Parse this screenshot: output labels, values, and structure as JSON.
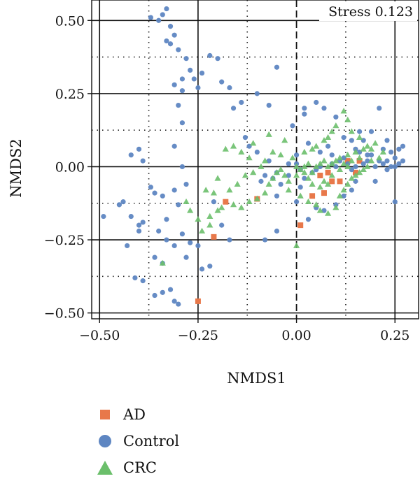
{
  "chart_data": {
    "type": "scatter",
    "title": "",
    "annotation": "Stress 0.123",
    "xlabel": "NMDS1",
    "ylabel": "NMDS2",
    "xlim": [
      -0.52,
      0.31
    ],
    "ylim": [
      -0.52,
      0.57
    ],
    "xticks": [
      -0.5,
      -0.25,
      0.0,
      0.25
    ],
    "xtick_labels": [
      "−0.50",
      "−0.25",
      "0.00",
      "0.25"
    ],
    "yticks": [
      0.5,
      0.25,
      0.0,
      -0.25,
      -0.5
    ],
    "ytick_labels": [
      "0.50",
      "0.25",
      "0.00",
      "−0.25",
      "−0.50"
    ],
    "minor_gridlines_x": [
      -0.375,
      -0.125,
      0.125
    ],
    "minor_gridlines_y": [
      0.375,
      0.125,
      -0.125,
      -0.375
    ],
    "reference_lines": [
      {
        "axis": "x",
        "value": 0.0,
        "style": "dashed"
      }
    ],
    "grid": true,
    "legend_position": "bottom-left",
    "series": [
      {
        "name": "AD",
        "color": "#E8784A",
        "marker": "square",
        "points": [
          [
            -0.25,
            -0.46
          ],
          [
            -0.21,
            -0.24
          ],
          [
            -0.18,
            -0.12
          ],
          [
            -0.1,
            -0.11
          ],
          [
            0.01,
            -0.2
          ],
          [
            0.04,
            -0.1
          ],
          [
            0.07,
            -0.09
          ],
          [
            0.09,
            -0.05
          ],
          [
            0.11,
            -0.05
          ],
          [
            0.15,
            -0.02
          ],
          [
            0.16,
            0.02
          ],
          [
            0.13,
            0.02
          ],
          [
            0.06,
            -0.03
          ],
          [
            0.08,
            -0.02
          ]
        ]
      },
      {
        "name": "Control",
        "color": "#5E86C2",
        "marker": "circle",
        "points": [
          [
            -0.33,
            0.54
          ],
          [
            -0.34,
            0.52
          ],
          [
            -0.37,
            0.51
          ],
          [
            -0.35,
            0.5
          ],
          [
            -0.32,
            0.48
          ],
          [
            -0.31,
            0.45
          ],
          [
            -0.33,
            0.43
          ],
          [
            -0.32,
            0.42
          ],
          [
            -0.3,
            0.4
          ],
          [
            -0.28,
            0.37
          ],
          [
            -0.27,
            0.33
          ],
          [
            -0.26,
            0.3
          ],
          [
            -0.29,
            0.3
          ],
          [
            -0.25,
            0.27
          ],
          [
            -0.24,
            0.32
          ],
          [
            -0.2,
            0.37
          ],
          [
            -0.22,
            0.38
          ],
          [
            -0.19,
            0.29
          ],
          [
            -0.17,
            0.27
          ],
          [
            -0.14,
            0.22
          ],
          [
            -0.16,
            0.2
          ],
          [
            -0.13,
            0.1
          ],
          [
            -0.1,
            0.25
          ],
          [
            -0.07,
            0.21
          ],
          [
            -0.05,
            0.34
          ],
          [
            -0.1,
            0.05
          ],
          [
            -0.12,
            0.07
          ],
          [
            -0.31,
            0.28
          ],
          [
            -0.29,
            0.26
          ],
          [
            -0.3,
            0.21
          ],
          [
            -0.29,
            0.15
          ],
          [
            -0.31,
            0.07
          ],
          [
            -0.29,
            0.0
          ],
          [
            -0.28,
            -0.06
          ],
          [
            -0.31,
            -0.08
          ],
          [
            -0.34,
            -0.1
          ],
          [
            -0.3,
            -0.13
          ],
          [
            -0.33,
            -0.18
          ],
          [
            -0.35,
            -0.22
          ],
          [
            -0.33,
            -0.25
          ],
          [
            -0.31,
            -0.27
          ],
          [
            -0.29,
            -0.23
          ],
          [
            -0.27,
            -0.26
          ],
          [
            -0.28,
            -0.31
          ],
          [
            -0.25,
            -0.27
          ],
          [
            -0.36,
            -0.31
          ],
          [
            -0.34,
            -0.33
          ],
          [
            -0.32,
            -0.42
          ],
          [
            -0.34,
            -0.43
          ],
          [
            -0.36,
            -0.44
          ],
          [
            -0.31,
            -0.46
          ],
          [
            -0.3,
            -0.47
          ],
          [
            -0.39,
            -0.39
          ],
          [
            -0.41,
            -0.38
          ],
          [
            -0.4,
            -0.22
          ],
          [
            -0.39,
            -0.19
          ],
          [
            -0.4,
            -0.2
          ],
          [
            -0.42,
            -0.17
          ],
          [
            -0.44,
            -0.12
          ],
          [
            -0.45,
            -0.13
          ],
          [
            -0.49,
            -0.17
          ],
          [
            -0.43,
            -0.27
          ],
          [
            -0.4,
            0.06
          ],
          [
            -0.42,
            0.04
          ],
          [
            -0.39,
            0.02
          ],
          [
            -0.37,
            -0.07
          ],
          [
            -0.36,
            -0.09
          ],
          [
            -0.21,
            -0.12
          ],
          [
            -0.19,
            -0.2
          ],
          [
            -0.17,
            -0.25
          ],
          [
            -0.24,
            -0.35
          ],
          [
            -0.22,
            -0.34
          ],
          [
            -0.08,
            -0.25
          ],
          [
            -0.05,
            -0.22
          ],
          [
            -0.04,
            -0.06
          ],
          [
            -0.06,
            -0.04
          ],
          [
            -0.05,
            -0.02
          ],
          [
            -0.02,
            0.01
          ],
          [
            0.0,
            0.01
          ],
          [
            -0.01,
            0.14
          ],
          [
            0.02,
            0.18
          ],
          [
            0.02,
            0.2
          ],
          [
            0.05,
            0.22
          ],
          [
            0.07,
            0.2
          ],
          [
            0.1,
            0.17
          ],
          [
            0.12,
            0.1
          ],
          [
            0.14,
            0.09
          ],
          [
            0.15,
            0.06
          ],
          [
            0.16,
            0.05
          ],
          [
            0.18,
            0.04
          ],
          [
            0.19,
            0.04
          ],
          [
            0.21,
            0.02
          ],
          [
            0.22,
            0.01
          ],
          [
            0.23,
            0.02
          ],
          [
            0.24,
            0.0
          ],
          [
            0.26,
            0.01
          ],
          [
            0.26,
            0.06
          ],
          [
            0.27,
            0.07
          ],
          [
            0.25,
            0.03
          ],
          [
            0.25,
            0.0
          ],
          [
            0.23,
            -0.01
          ],
          [
            0.2,
            0.0
          ],
          [
            0.18,
            0.02
          ],
          [
            0.17,
            0.01
          ],
          [
            0.15,
            0.0
          ],
          [
            0.13,
            0.01
          ],
          [
            0.12,
            0.03
          ],
          [
            0.11,
            0.02
          ],
          [
            0.1,
            0.0
          ],
          [
            0.09,
            0.01
          ],
          [
            0.06,
            0.0
          ],
          [
            0.05,
            -0.01
          ],
          [
            0.04,
            -0.02
          ],
          [
            0.02,
            -0.04
          ],
          [
            0.01,
            -0.07
          ],
          [
            0.0,
            -0.12
          ],
          [
            0.05,
            -0.14
          ],
          [
            0.03,
            -0.18
          ],
          [
            0.07,
            -0.15
          ],
          [
            0.1,
            -0.13
          ],
          [
            0.12,
            -0.1
          ],
          [
            0.14,
            -0.08
          ],
          [
            0.2,
            -0.05
          ],
          [
            0.21,
            0.2
          ],
          [
            0.19,
            0.12
          ],
          [
            0.23,
            0.09
          ],
          [
            0.22,
            0.06
          ],
          [
            0.24,
            0.05
          ],
          [
            0.16,
            0.12
          ],
          [
            0.17,
            0.09
          ],
          [
            0.08,
            0.07
          ],
          [
            0.09,
            0.04
          ],
          [
            0.14,
            -0.01
          ],
          [
            0.06,
            0.05
          ],
          [
            0.03,
            0.08
          ],
          [
            -0.02,
            -0.03
          ],
          [
            -0.08,
            -0.03
          ],
          [
            -0.09,
            -0.05
          ],
          [
            -0.05,
            -0.1
          ],
          [
            -0.07,
            0.02
          ],
          [
            0.01,
            -0.01
          ],
          [
            0.0,
            0.04
          ],
          [
            0.25,
            -0.12
          ],
          [
            0.15,
            -0.05
          ],
          [
            0.27,
            0.02
          ]
        ]
      },
      {
        "name": "CRC",
        "color": "#6BBF6B",
        "marker": "triangle",
        "points": [
          [
            -0.34,
            -0.33
          ],
          [
            -0.28,
            -0.12
          ],
          [
            -0.27,
            -0.15
          ],
          [
            -0.25,
            -0.18
          ],
          [
            -0.22,
            -0.17
          ],
          [
            -0.2,
            -0.15
          ],
          [
            -0.19,
            -0.14
          ],
          [
            -0.16,
            -0.13
          ],
          [
            -0.14,
            -0.14
          ],
          [
            -0.12,
            -0.12
          ],
          [
            -0.1,
            -0.11
          ],
          [
            -0.08,
            -0.09
          ],
          [
            -0.07,
            -0.06
          ],
          [
            -0.06,
            -0.04
          ],
          [
            -0.05,
            -0.02
          ],
          [
            -0.04,
            -0.01
          ],
          [
            -0.03,
            -0.03
          ],
          [
            -0.02,
            -0.05
          ],
          [
            0.0,
            -0.27
          ],
          [
            0.0,
            -0.03
          ],
          [
            0.01,
            -0.01
          ],
          [
            0.02,
            0.0
          ],
          [
            0.03,
            0.01
          ],
          [
            0.04,
            -0.02
          ],
          [
            0.05,
            0.0
          ],
          [
            0.06,
            0.01
          ],
          [
            0.07,
            0.02
          ],
          [
            0.08,
            0.0
          ],
          [
            0.09,
            0.01
          ],
          [
            0.1,
            0.02
          ],
          [
            0.11,
            0.03
          ],
          [
            0.12,
            0.01
          ],
          [
            0.13,
            0.04
          ],
          [
            0.14,
            0.02
          ],
          [
            0.15,
            0.05
          ],
          [
            0.16,
            0.03
          ],
          [
            0.17,
            0.06
          ],
          [
            0.18,
            0.07
          ],
          [
            0.19,
            0.06
          ],
          [
            0.2,
            0.08
          ],
          [
            0.12,
            0.19
          ],
          [
            0.13,
            0.16
          ],
          [
            0.1,
            0.14
          ],
          [
            0.09,
            0.12
          ],
          [
            0.08,
            0.1
          ],
          [
            0.07,
            0.09
          ],
          [
            0.05,
            0.07
          ],
          [
            0.04,
            0.06
          ],
          [
            0.02,
            0.05
          ],
          [
            -0.01,
            0.03
          ],
          [
            -0.03,
            0.09
          ],
          [
            -0.07,
            0.11
          ],
          [
            -0.11,
            0.08
          ],
          [
            -0.14,
            0.05
          ],
          [
            -0.16,
            0.07
          ],
          [
            -0.18,
            0.06
          ],
          [
            -0.13,
            -0.03
          ],
          [
            -0.15,
            -0.06
          ],
          [
            -0.17,
            -0.08
          ],
          [
            -0.2,
            -0.04
          ],
          [
            -0.21,
            -0.09
          ],
          [
            -0.23,
            -0.08
          ],
          [
            -0.11,
            -0.02
          ],
          [
            -0.09,
            0.0
          ],
          [
            -0.02,
            -0.08
          ],
          [
            0.01,
            -0.1
          ],
          [
            0.03,
            -0.12
          ],
          [
            0.05,
            -0.13
          ],
          [
            0.06,
            -0.15
          ],
          [
            0.08,
            -0.16
          ],
          [
            0.1,
            -0.14
          ],
          [
            0.11,
            -0.1
          ],
          [
            0.12,
            -0.08
          ],
          [
            0.13,
            -0.06
          ],
          [
            0.14,
            -0.04
          ],
          [
            0.15,
            -0.03
          ],
          [
            0.16,
            -0.02
          ],
          [
            0.17,
            -0.01
          ],
          [
            0.18,
            0.0
          ],
          [
            0.08,
            -0.06
          ],
          [
            0.07,
            -0.05
          ],
          [
            0.06,
            -0.07
          ],
          [
            0.04,
            -0.06
          ],
          [
            0.03,
            -0.04
          ],
          [
            0.02,
            -0.02
          ],
          [
            0.0,
            0.0
          ],
          [
            0.09,
            -0.03
          ],
          [
            0.11,
            -0.01
          ],
          [
            0.13,
            0.0
          ],
          [
            -0.04,
            0.04
          ],
          [
            -0.06,
            0.05
          ],
          [
            -0.08,
            0.02
          ],
          [
            -0.12,
            0.03
          ],
          [
            0.16,
            0.1
          ],
          [
            0.14,
            0.12
          ],
          [
            -0.22,
            -0.2
          ],
          [
            -0.24,
            -0.22
          ],
          [
            0.19,
            0.02
          ],
          [
            0.21,
            0.03
          ],
          [
            0.22,
            0.05
          ]
        ]
      }
    ]
  }
}
